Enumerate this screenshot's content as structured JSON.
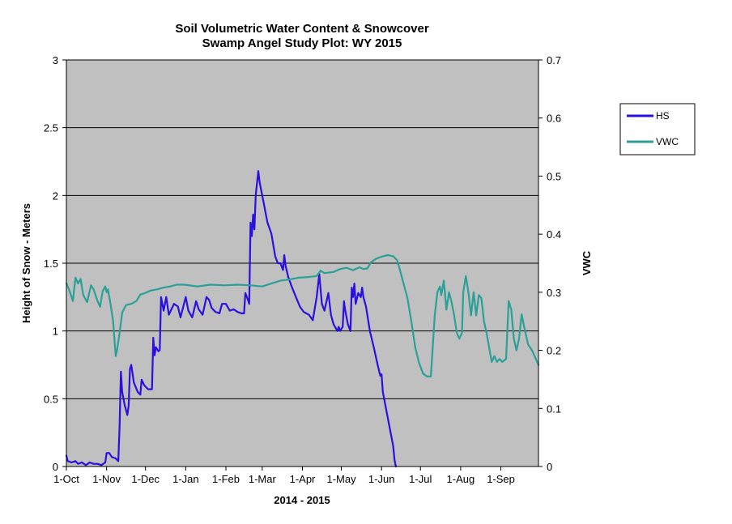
{
  "chart_data": {
    "type": "line",
    "title": "Soil Volumetric Water Content & Snowcover",
    "subtitle": "Swamp Angel Study Plot: WY 2015",
    "xlabel": "2014 - 2015",
    "ylabel_left": "Height of Snow - Meters",
    "ylabel_right": "VWC",
    "x_ticks": [
      "1-Oct",
      "1-Nov",
      "1-Dec",
      "1-Jan",
      "1-Feb",
      "1-Mar",
      "1-Apr",
      "1-May",
      "1-Jun",
      "1-Jul",
      "1-Aug",
      "1-Sep"
    ],
    "y_left_ticks": [
      "0",
      "0.5",
      "1",
      "1.5",
      "2",
      "2.5",
      "3"
    ],
    "y_right_ticks": [
      "0",
      "0.1",
      "0.2",
      "0.3",
      "0.4",
      "0.5",
      "0.6",
      "0.7"
    ],
    "ylim_left": [
      0,
      3
    ],
    "ylim_right": [
      0,
      0.7
    ],
    "xlim": [
      "2014-10-01",
      "2015-09-30"
    ],
    "grid": true,
    "legend_position": "right",
    "plot_background": "#c0c0c0",
    "series": [
      {
        "name": "HS",
        "axis": "left",
        "color": "#2a10e0",
        "points": [
          [
            "2014-10-01",
            0.08
          ],
          [
            "2014-10-02",
            0.04
          ],
          [
            "2014-10-05",
            0.03
          ],
          [
            "2014-10-08",
            0.04
          ],
          [
            "2014-10-10",
            0.02
          ],
          [
            "2014-10-13",
            0.03
          ],
          [
            "2014-10-16",
            0.01
          ],
          [
            "2014-10-19",
            0.03
          ],
          [
            "2014-10-22",
            0.02
          ],
          [
            "2014-10-25",
            0.02
          ],
          [
            "2014-10-28",
            0.01
          ],
          [
            "2014-10-31",
            0.03
          ],
          [
            "2014-11-01",
            0.1
          ],
          [
            "2014-11-03",
            0.1
          ],
          [
            "2014-11-05",
            0.07
          ],
          [
            "2014-11-08",
            0.06
          ],
          [
            "2014-11-10",
            0.04
          ],
          [
            "2014-11-11",
            0.3
          ],
          [
            "2014-11-12",
            0.7
          ],
          [
            "2014-11-13",
            0.55
          ],
          [
            "2014-11-15",
            0.45
          ],
          [
            "2014-11-17",
            0.38
          ],
          [
            "2014-11-18",
            0.45
          ],
          [
            "2014-11-19",
            0.72
          ],
          [
            "2014-11-20",
            0.75
          ],
          [
            "2014-11-22",
            0.62
          ],
          [
            "2014-11-25",
            0.55
          ],
          [
            "2014-11-27",
            0.53
          ],
          [
            "2014-11-28",
            0.64
          ],
          [
            "2014-11-30",
            0.6
          ],
          [
            "2014-12-03",
            0.57
          ],
          [
            "2014-12-06",
            0.57
          ],
          [
            "2014-12-07",
            0.95
          ],
          [
            "2014-12-08",
            0.82
          ],
          [
            "2014-12-09",
            0.88
          ],
          [
            "2014-12-11",
            0.85
          ],
          [
            "2014-12-12",
            0.86
          ],
          [
            "2014-12-13",
            1.25
          ],
          [
            "2014-12-14",
            1.2
          ],
          [
            "2014-12-15",
            1.15
          ],
          [
            "2014-12-17",
            1.25
          ],
          [
            "2014-12-19",
            1.12
          ],
          [
            "2014-12-21",
            1.16
          ],
          [
            "2014-12-23",
            1.2
          ],
          [
            "2014-12-26",
            1.18
          ],
          [
            "2014-12-28",
            1.1
          ],
          [
            "2015-01-01",
            1.25
          ],
          [
            "2015-01-03",
            1.15
          ],
          [
            "2015-01-06",
            1.1
          ],
          [
            "2015-01-09",
            1.22
          ],
          [
            "2015-01-11",
            1.16
          ],
          [
            "2015-01-14",
            1.12
          ],
          [
            "2015-01-17",
            1.25
          ],
          [
            "2015-01-19",
            1.23
          ],
          [
            "2015-01-21",
            1.17
          ],
          [
            "2015-01-24",
            1.14
          ],
          [
            "2015-01-27",
            1.13
          ],
          [
            "2015-01-29",
            1.2
          ],
          [
            "2015-02-01",
            1.2
          ],
          [
            "2015-02-04",
            1.15
          ],
          [
            "2015-02-07",
            1.16
          ],
          [
            "2015-02-10",
            1.14
          ],
          [
            "2015-02-13",
            1.13
          ],
          [
            "2015-02-15",
            1.13
          ],
          [
            "2015-02-16",
            1.28
          ],
          [
            "2015-02-18",
            1.23
          ],
          [
            "2015-02-19",
            1.2
          ],
          [
            "2015-02-20",
            1.8
          ],
          [
            "2015-02-21",
            1.7
          ],
          [
            "2015-02-22",
            1.86
          ],
          [
            "2015-02-23",
            1.75
          ],
          [
            "2015-02-24",
            2.0
          ],
          [
            "2015-02-26",
            2.18
          ],
          [
            "2015-02-27",
            2.1
          ],
          [
            "2015-02-28",
            2.05
          ],
          [
            "2015-03-02",
            1.95
          ],
          [
            "2015-03-05",
            1.8
          ],
          [
            "2015-03-08",
            1.72
          ],
          [
            "2015-03-11",
            1.55
          ],
          [
            "2015-03-13",
            1.5
          ],
          [
            "2015-03-15",
            1.5
          ],
          [
            "2015-03-17",
            1.45
          ],
          [
            "2015-03-18",
            1.56
          ],
          [
            "2015-03-19",
            1.48
          ],
          [
            "2015-03-21",
            1.4
          ],
          [
            "2015-03-24",
            1.32
          ],
          [
            "2015-03-27",
            1.25
          ],
          [
            "2015-03-30",
            1.18
          ],
          [
            "2015-04-02",
            1.14
          ],
          [
            "2015-04-06",
            1.12
          ],
          [
            "2015-04-09",
            1.08
          ],
          [
            "2015-04-12",
            1.25
          ],
          [
            "2015-04-14",
            1.42
          ],
          [
            "2015-04-16",
            1.2
          ],
          [
            "2015-04-18",
            1.15
          ],
          [
            "2015-04-21",
            1.28
          ],
          [
            "2015-04-23",
            1.12
          ],
          [
            "2015-04-25",
            1.05
          ],
          [
            "2015-04-28",
            1.0
          ],
          [
            "2015-04-29",
            1.03
          ],
          [
            "2015-04-30",
            1.0
          ],
          [
            "2015-05-02",
            1.03
          ],
          [
            "2015-05-03",
            1.22
          ],
          [
            "2015-05-04",
            1.15
          ],
          [
            "2015-05-06",
            1.05
          ],
          [
            "2015-05-08",
            1.0
          ],
          [
            "2015-05-09",
            1.32
          ],
          [
            "2015-05-10",
            1.25
          ],
          [
            "2015-05-11",
            1.35
          ],
          [
            "2015-05-12",
            1.2
          ],
          [
            "2015-05-14",
            1.28
          ],
          [
            "2015-05-16",
            1.25
          ],
          [
            "2015-05-17",
            1.32
          ],
          [
            "2015-05-18",
            1.25
          ],
          [
            "2015-05-20",
            1.18
          ],
          [
            "2015-05-23",
            1.0
          ],
          [
            "2015-05-26",
            0.88
          ],
          [
            "2015-05-29",
            0.75
          ],
          [
            "2015-05-31",
            0.67
          ],
          [
            "2015-06-01",
            0.68
          ],
          [
            "2015-06-02",
            0.55
          ],
          [
            "2015-06-04",
            0.45
          ],
          [
            "2015-06-06",
            0.35
          ],
          [
            "2015-06-08",
            0.25
          ],
          [
            "2015-06-10",
            0.15
          ],
          [
            "2015-06-11",
            0.05
          ],
          [
            "2015-06-12",
            0.0
          ]
        ]
      },
      {
        "name": "VWC",
        "axis": "right",
        "color": "#2aa198",
        "points": [
          [
            "2014-10-01",
            0.315
          ],
          [
            "2014-10-03",
            0.305
          ],
          [
            "2014-10-06",
            0.285
          ],
          [
            "2014-10-08",
            0.325
          ],
          [
            "2014-10-10",
            0.315
          ],
          [
            "2014-10-12",
            0.323
          ],
          [
            "2014-10-14",
            0.295
          ],
          [
            "2014-10-17",
            0.283
          ],
          [
            "2014-10-20",
            0.312
          ],
          [
            "2014-10-22",
            0.305
          ],
          [
            "2014-10-25",
            0.285
          ],
          [
            "2014-10-27",
            0.275
          ],
          [
            "2014-10-29",
            0.302
          ],
          [
            "2014-10-31",
            0.31
          ],
          [
            "2014-11-01",
            0.3
          ],
          [
            "2014-11-02",
            0.305
          ],
          [
            "2014-11-04",
            0.28
          ],
          [
            "2014-11-06",
            0.25
          ],
          [
            "2014-11-08",
            0.19
          ],
          [
            "2014-11-09",
            0.2
          ],
          [
            "2014-11-11",
            0.23
          ],
          [
            "2014-11-13",
            0.265
          ],
          [
            "2014-11-16",
            0.278
          ],
          [
            "2014-11-20",
            0.28
          ],
          [
            "2014-11-24",
            0.285
          ],
          [
            "2014-11-27",
            0.296
          ],
          [
            "2014-11-30",
            0.298
          ],
          [
            "2014-12-05",
            0.303
          ],
          [
            "2014-12-10",
            0.305
          ],
          [
            "2014-12-15",
            0.308
          ],
          [
            "2014-12-20",
            0.31
          ],
          [
            "2014-12-25",
            0.313
          ],
          [
            "2014-12-31",
            0.313
          ],
          [
            "2015-01-10",
            0.31
          ],
          [
            "2015-01-20",
            0.313
          ],
          [
            "2015-01-31",
            0.312
          ],
          [
            "2015-02-10",
            0.313
          ],
          [
            "2015-02-20",
            0.312
          ],
          [
            "2015-03-01",
            0.31
          ],
          [
            "2015-03-08",
            0.315
          ],
          [
            "2015-03-15",
            0.32
          ],
          [
            "2015-03-22",
            0.322
          ],
          [
            "2015-03-29",
            0.325
          ],
          [
            "2015-04-05",
            0.326
          ],
          [
            "2015-04-12",
            0.328
          ],
          [
            "2015-04-15",
            0.337
          ],
          [
            "2015-04-18",
            0.333
          ],
          [
            "2015-04-25",
            0.335
          ],
          [
            "2015-04-30",
            0.34
          ],
          [
            "2015-05-05",
            0.342
          ],
          [
            "2015-05-10",
            0.338
          ],
          [
            "2015-05-15",
            0.343
          ],
          [
            "2015-05-18",
            0.34
          ],
          [
            "2015-05-21",
            0.341
          ],
          [
            "2015-05-24",
            0.352
          ],
          [
            "2015-05-28",
            0.358
          ],
          [
            "2015-06-02",
            0.362
          ],
          [
            "2015-06-06",
            0.364
          ],
          [
            "2015-06-10",
            0.362
          ],
          [
            "2015-06-13",
            0.355
          ],
          [
            "2015-06-15",
            0.34
          ],
          [
            "2015-06-18",
            0.315
          ],
          [
            "2015-06-21",
            0.29
          ],
          [
            "2015-06-24",
            0.25
          ],
          [
            "2015-06-27",
            0.205
          ],
          [
            "2015-06-30",
            0.178
          ],
          [
            "2015-07-03",
            0.16
          ],
          [
            "2015-07-06",
            0.155
          ],
          [
            "2015-07-09",
            0.155
          ],
          [
            "2015-07-12",
            0.26
          ],
          [
            "2015-07-14",
            0.3
          ],
          [
            "2015-07-16",
            0.31
          ],
          [
            "2015-07-17",
            0.295
          ],
          [
            "2015-07-19",
            0.32
          ],
          [
            "2015-07-21",
            0.27
          ],
          [
            "2015-07-23",
            0.3
          ],
          [
            "2015-07-25",
            0.283
          ],
          [
            "2015-07-27",
            0.26
          ],
          [
            "2015-07-29",
            0.23
          ],
          [
            "2015-07-31",
            0.22
          ],
          [
            "2015-08-02",
            0.23
          ],
          [
            "2015-08-03",
            0.3
          ],
          [
            "2015-08-05",
            0.328
          ],
          [
            "2015-08-07",
            0.3
          ],
          [
            "2015-08-09",
            0.26
          ],
          [
            "2015-08-10",
            0.28
          ],
          [
            "2015-08-11",
            0.3
          ],
          [
            "2015-08-13",
            0.26
          ],
          [
            "2015-08-15",
            0.295
          ],
          [
            "2015-08-17",
            0.29
          ],
          [
            "2015-08-19",
            0.25
          ],
          [
            "2015-08-21",
            0.23
          ],
          [
            "2015-08-23",
            0.205
          ],
          [
            "2015-08-25",
            0.18
          ],
          [
            "2015-08-27",
            0.19
          ],
          [
            "2015-08-29",
            0.18
          ],
          [
            "2015-08-31",
            0.185
          ],
          [
            "2015-09-02",
            0.18
          ],
          [
            "2015-09-05",
            0.185
          ],
          [
            "2015-09-07",
            0.285
          ],
          [
            "2015-09-09",
            0.27
          ],
          [
            "2015-09-11",
            0.22
          ],
          [
            "2015-09-13",
            0.2
          ],
          [
            "2015-09-15",
            0.22
          ],
          [
            "2015-09-17",
            0.262
          ],
          [
            "2015-09-19",
            0.24
          ],
          [
            "2015-09-22",
            0.21
          ],
          [
            "2015-09-25",
            0.2
          ],
          [
            "2015-09-28",
            0.185
          ],
          [
            "2015-09-30",
            0.175
          ]
        ]
      }
    ]
  }
}
